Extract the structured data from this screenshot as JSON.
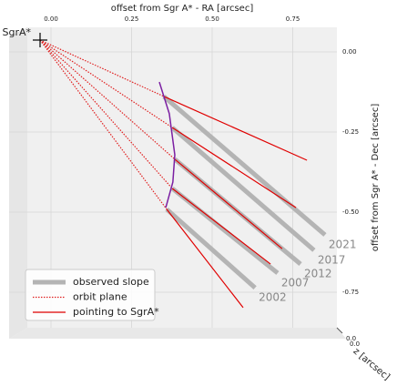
{
  "chart_data": {
    "type": "line",
    "xlabel": "offset from Sgr A* - RA  [arcsec]",
    "ylabel": "offset from Sgr A* - Dec  [arcsec]",
    "zlabel": "z [arcsec]",
    "xticks": [
      {
        "value": 0,
        "label": "0.00"
      },
      {
        "value": 0.25,
        "label": "0.25"
      },
      {
        "value": 0.5,
        "label": "0.50"
      },
      {
        "value": 0.75,
        "label": "0.75"
      }
    ],
    "yticks": [
      {
        "value": 0,
        "label": "0.00"
      },
      {
        "value": -0.25,
        "label": "-0.25"
      },
      {
        "value": -0.5,
        "label": "-0.50"
      },
      {
        "value": -0.75,
        "label": "-0.75"
      }
    ],
    "zticks": [
      {
        "value": 0,
        "label": "0.0"
      }
    ],
    "marker": {
      "label": "SgrA*",
      "x": 0,
      "y": 0
    },
    "legend": "lower left",
    "series": [
      {
        "name": "observed slope",
        "color": "#b4b4b4",
        "style": "solid",
        "segments": [
          {
            "label": "2021",
            "x": [
              0.384,
              0.884
            ],
            "y": [
              -0.176,
              -0.608
            ]
          },
          {
            "label": "2017",
            "x": [
              0.41,
              0.85
            ],
            "y": [
              -0.273,
              -0.656
            ]
          },
          {
            "label": "2012",
            "x": [
              0.418,
              0.808
            ],
            "y": [
              -0.372,
              -0.699
            ]
          },
          {
            "label": "2007",
            "x": [
              0.41,
              0.737
            ],
            "y": [
              -0.463,
              -0.727
            ]
          },
          {
            "label": "2002",
            "x": [
              0.393,
              0.667
            ],
            "y": [
              -0.528,
              -0.773
            ]
          }
        ]
      },
      {
        "name": "orbit plane",
        "color": "#e02020",
        "style": "dotted",
        "segments": [
          {
            "x": [
              0,
              0.384
            ],
            "y": [
              0,
              -0.176
            ]
          },
          {
            "x": [
              0,
              0.41
            ],
            "y": [
              0,
              -0.273
            ]
          },
          {
            "x": [
              0,
              0.418
            ],
            "y": [
              0,
              -0.372
            ]
          },
          {
            "x": [
              0,
              0.41
            ],
            "y": [
              0,
              -0.463
            ]
          },
          {
            "x": [
              0,
              0.393
            ],
            "y": [
              0,
              -0.528
            ]
          }
        ]
      },
      {
        "name": "pointing to SgrA*",
        "color": "#e00000",
        "style": "solid",
        "segments": [
          {
            "x": [
              0.384,
              0.828
            ],
            "y": [
              -0.176,
              -0.375
            ]
          },
          {
            "x": [
              0.41,
              0.794
            ],
            "y": [
              -0.273,
              -0.523
            ]
          },
          {
            "x": [
              0.418,
              0.751
            ],
            "y": [
              -0.372,
              -0.651
            ]
          },
          {
            "x": [
              0.41,
              0.715
            ],
            "y": [
              -0.463,
              -0.699
            ]
          },
          {
            "x": [
              0.393,
              0.63
            ],
            "y": [
              -0.528,
              -0.835
            ]
          }
        ]
      }
    ],
    "curve": {
      "color": "#7b1fa2",
      "x": [
        0.37,
        0.401,
        0.418,
        0.412,
        0.39
      ],
      "y": [
        -0.131,
        -0.23,
        -0.358,
        -0.443,
        -0.523
      ]
    }
  }
}
